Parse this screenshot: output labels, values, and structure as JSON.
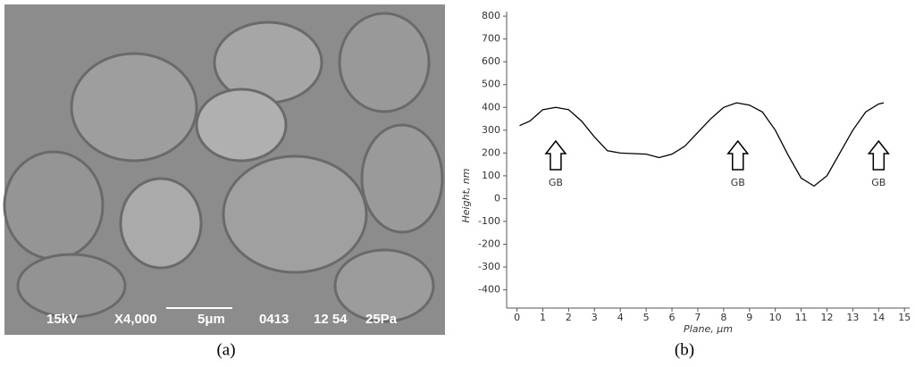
{
  "panels": {
    "a": "(a)",
    "b": "(b)"
  },
  "image_caption": [
    "15kV",
    "X4,000",
    "5μm",
    "0413",
    "12 54",
    "25Pa"
  ],
  "chart_data": {
    "type": "line",
    "xlabel": "Plane, μm",
    "ylabel": "Height, nm",
    "x": [
      0.1,
      0.5,
      1,
      1.5,
      2,
      2.5,
      3,
      3.5,
      4,
      5,
      5.5,
      6,
      6.5,
      7,
      7.5,
      8,
      8.5,
      9,
      9.5,
      10,
      10.5,
      11,
      11.5,
      12,
      12.5,
      13,
      13.5,
      14,
      14.2
    ],
    "values": [
      320,
      340,
      390,
      400,
      390,
      340,
      270,
      210,
      200,
      195,
      180,
      195,
      230,
      290,
      350,
      400,
      420,
      410,
      380,
      300,
      190,
      90,
      55,
      100,
      200,
      300,
      380,
      415,
      420
    ],
    "color": "#000000",
    "xlim": [
      -0.4,
      15.2
    ],
    "ylim": [
      -480,
      820
    ],
    "xticks": [
      0,
      1,
      2,
      3,
      4,
      5,
      6,
      7,
      8,
      9,
      10,
      11,
      12,
      13,
      14,
      15
    ],
    "yticks": [
      -400,
      -300,
      -200,
      -100,
      0,
      100,
      200,
      300,
      400,
      500,
      600,
      700,
      800
    ],
    "grid": false,
    "annotations": [
      {
        "text": "GB",
        "x": 1.5
      },
      {
        "text": "GB",
        "x": 8.55
      },
      {
        "text": "GB",
        "x": 14
      }
    ]
  }
}
